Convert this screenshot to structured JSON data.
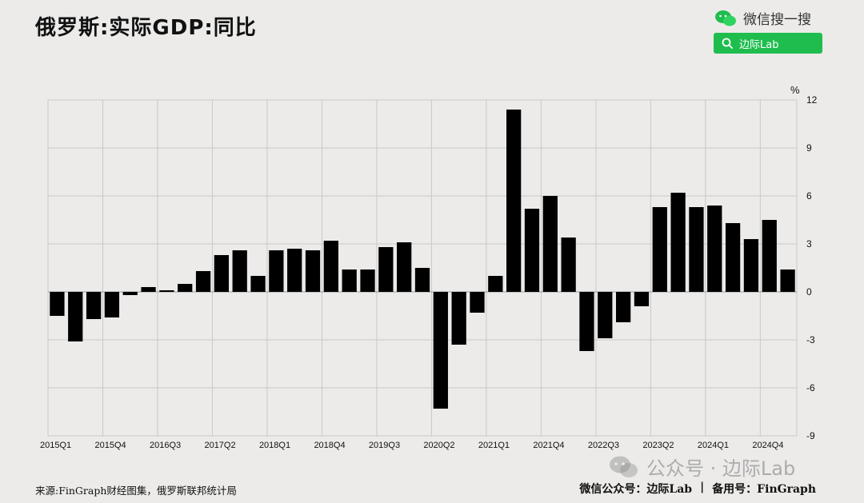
{
  "title": "俄罗斯:实际GDP:同比",
  "wechat": {
    "search_text": "微信搜一搜",
    "button_label": "边际Lab"
  },
  "footer": {
    "source": "来源:FinGraph财经图集，俄罗斯联邦统计局",
    "account": "微信公众号：边际Lab",
    "divider": "|",
    "backup": "备用号：FinGraph"
  },
  "watermark": {
    "text": "公众号 · 边际Lab"
  },
  "colors": {
    "background": "#ecebea",
    "bar": "#000000",
    "accent": "#1fbd4e"
  },
  "chart_data": {
    "type": "bar",
    "unit": "%",
    "ylim": [
      -9,
      12
    ],
    "yticks": [
      -9,
      -6,
      -3,
      0,
      3,
      6,
      9,
      12
    ],
    "y_axis_position": "right",
    "grid": true,
    "categories": [
      "2015Q1",
      "2015Q2",
      "2015Q3",
      "2015Q4",
      "2016Q1",
      "2016Q2",
      "2016Q3",
      "2016Q4",
      "2017Q1",
      "2017Q2",
      "2017Q3",
      "2017Q4",
      "2018Q1",
      "2018Q2",
      "2018Q3",
      "2018Q4",
      "2019Q1",
      "2019Q2",
      "2019Q3",
      "2019Q4",
      "2020Q1",
      "2020Q2",
      "2020Q3",
      "2020Q4",
      "2021Q1",
      "2021Q2",
      "2021Q3",
      "2021Q4",
      "2022Q1",
      "2022Q2",
      "2022Q3",
      "2022Q4",
      "2023Q1",
      "2023Q2",
      "2023Q3",
      "2023Q4",
      "2024Q1",
      "2024Q2",
      "2024Q3",
      "2024Q4",
      "2025Q1"
    ],
    "x_tick_labels": [
      "2015Q1",
      "2015Q4",
      "2016Q3",
      "2017Q2",
      "2018Q1",
      "2018Q4",
      "2019Q3",
      "2020Q2",
      "2021Q1",
      "2021Q4",
      "2022Q3",
      "2023Q2",
      "2024Q1",
      "2024Q4"
    ],
    "values": [
      -1.5,
      -3.1,
      -1.7,
      -1.6,
      -0.2,
      0.3,
      0.1,
      0.5,
      1.3,
      2.3,
      2.6,
      1.0,
      2.6,
      2.7,
      2.6,
      3.2,
      1.4,
      1.4,
      2.8,
      3.1,
      1.5,
      -7.3,
      -3.3,
      -1.3,
      1.0,
      11.4,
      5.2,
      6.0,
      3.4,
      -3.7,
      -2.9,
      -1.9,
      -0.9,
      5.3,
      6.2,
      5.3,
      5.4,
      4.3,
      3.3,
      4.5,
      1.4
    ]
  }
}
